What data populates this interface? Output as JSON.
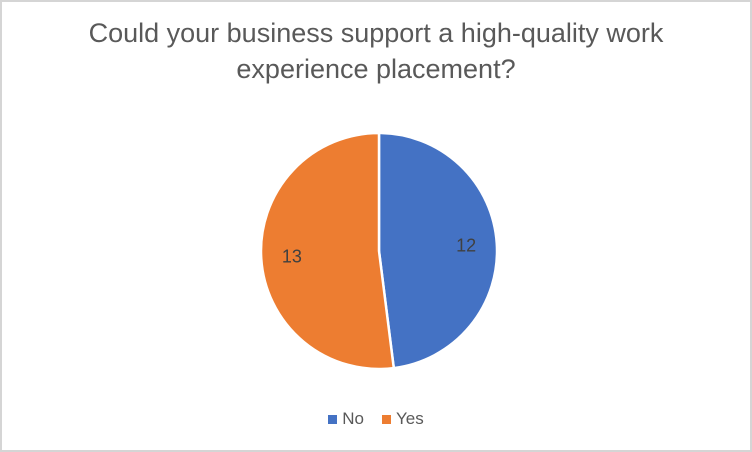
{
  "window": {
    "background": "#ffffff",
    "frame_border_color": "#d5d5d5"
  },
  "chart_data": {
    "type": "pie",
    "title": "Could your business support a high-quality work experience placement?",
    "title_color": "#595959",
    "slices": [
      {
        "label": "No",
        "value": 12,
        "color": "#4472C4"
      },
      {
        "label": "Yes",
        "value": 13,
        "color": "#ED7D31"
      }
    ],
    "total": 25,
    "start_angle_deg": 0,
    "direction": "clockwise",
    "data_labels_shown": [
      "12",
      "13"
    ],
    "data_label_color": "#404040",
    "slice_border_color": "#ffffff",
    "legend_position": "bottom",
    "legend": [
      "No",
      "Yes"
    ],
    "legend_text_color": "#595959"
  }
}
